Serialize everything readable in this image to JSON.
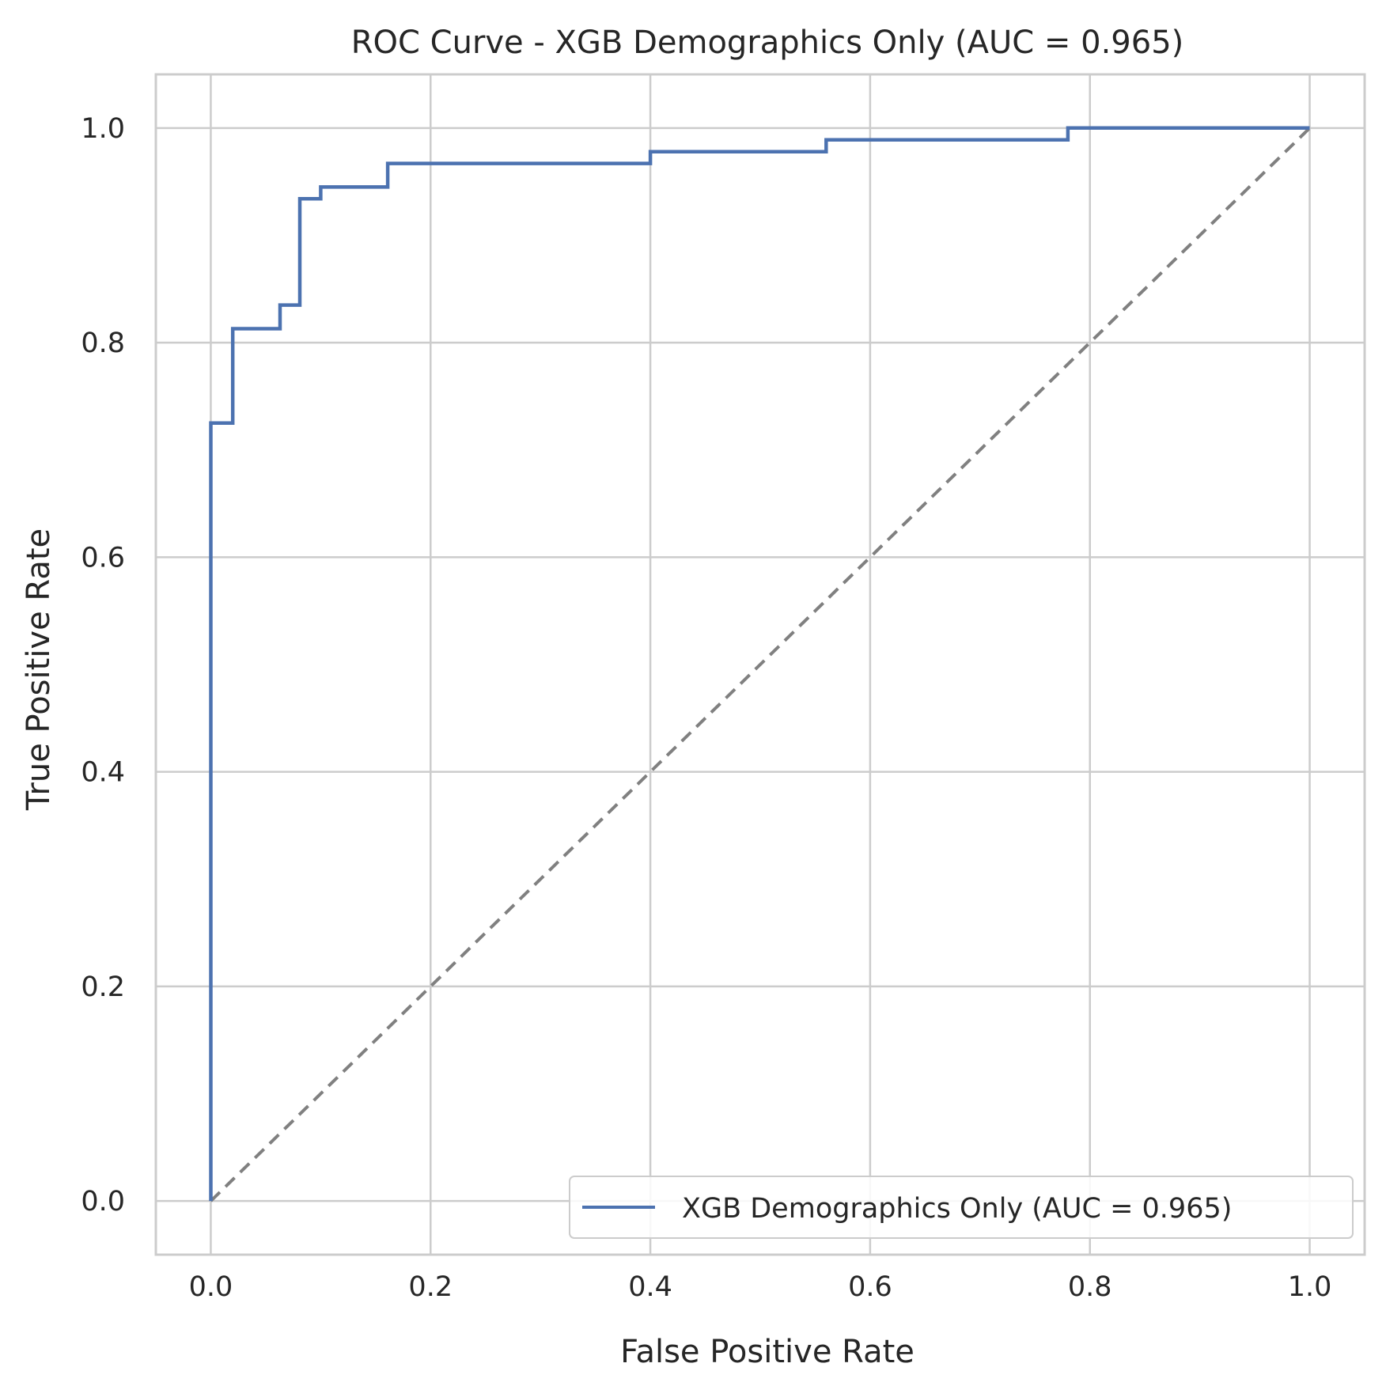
{
  "chart_data": {
    "type": "line",
    "title": "ROC Curve - XGB Demographics Only (AUC = 0.965)",
    "xlabel": "False Positive Rate",
    "ylabel": "True Positive Rate",
    "xlim": [
      -0.05,
      1.05
    ],
    "ylim": [
      -0.05,
      1.05
    ],
    "xticks": [
      0.0,
      0.2,
      0.4,
      0.6,
      0.8,
      1.0
    ],
    "yticks": [
      0.0,
      0.2,
      0.4,
      0.6,
      0.8,
      1.0
    ],
    "xtick_labels": [
      "0.0",
      "0.2",
      "0.4",
      "0.6",
      "0.8",
      "1.0"
    ],
    "ytick_labels": [
      "0.0",
      "0.2",
      "0.4",
      "0.6",
      "0.8",
      "1.0"
    ],
    "grid": true,
    "legend_position": "lower-right",
    "series": [
      {
        "name": "XGB Demographics Only (AUC = 0.965)",
        "color": "#4c72b0",
        "style": "solid",
        "x": [
          0.0,
          0.0,
          0.02,
          0.02,
          0.063,
          0.063,
          0.081,
          0.081,
          0.1,
          0.1,
          0.161,
          0.161,
          0.4,
          0.4,
          0.56,
          0.56,
          0.78,
          0.78,
          1.0
        ],
        "y": [
          0.0,
          0.725,
          0.725,
          0.813,
          0.813,
          0.835,
          0.835,
          0.934,
          0.934,
          0.945,
          0.945,
          0.967,
          0.967,
          0.978,
          0.978,
          0.989,
          0.989,
          1.0,
          1.0
        ]
      }
    ],
    "reference_line": {
      "x": [
        0.0,
        1.0
      ],
      "y": [
        0.0,
        1.0
      ],
      "color": "#808080",
      "style": "dashed"
    }
  }
}
